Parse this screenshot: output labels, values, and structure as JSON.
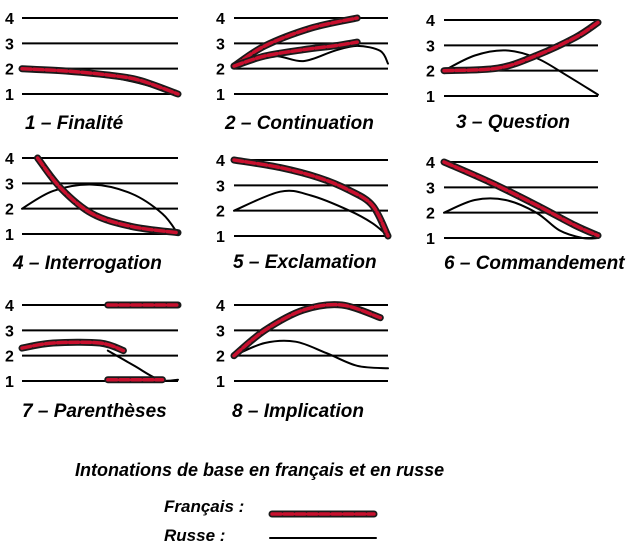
{
  "levels": [
    "1",
    "2",
    "3",
    "4"
  ],
  "panels": [
    {
      "title": "1 – Finalité",
      "french": [
        [
          0,
          2
        ],
        [
          0.3,
          1.9
        ],
        [
          0.55,
          1.75
        ],
        [
          0.75,
          1.55
        ],
        [
          1,
          1
        ]
      ],
      "russian": [
        [
          0.05,
          2
        ],
        [
          0.35,
          1.9
        ],
        [
          0.7,
          1.5
        ],
        [
          1,
          1
        ]
      ]
    },
    {
      "title": "2 – Continuation",
      "french": [
        [
          0,
          2.1
        ],
        [
          0.2,
          2.9
        ],
        [
          0.5,
          3.6
        ],
        [
          0.8,
          4
        ]
      ],
      "french2": [
        [
          0,
          2.1
        ],
        [
          0.2,
          2.5
        ],
        [
          0.45,
          2.75
        ],
        [
          0.65,
          2.9
        ],
        [
          0.8,
          3.05
        ]
      ],
      "russian": [
        [
          0,
          2.1
        ],
        [
          0.25,
          2.5
        ],
        [
          0.45,
          2.3
        ],
        [
          0.65,
          2.7
        ],
        [
          0.8,
          2.9
        ],
        [
          0.95,
          2.7
        ],
        [
          1,
          2.2
        ]
      ]
    },
    {
      "title": "3 – Question",
      "french": [
        [
          0,
          2
        ],
        [
          0.35,
          2.1
        ],
        [
          0.6,
          2.6
        ],
        [
          0.85,
          3.3
        ],
        [
          1,
          3.9
        ]
      ],
      "russian": [
        [
          0,
          2
        ],
        [
          0.2,
          2.6
        ],
        [
          0.4,
          2.8
        ],
        [
          0.6,
          2.5
        ],
        [
          0.8,
          1.8
        ],
        [
          1,
          1.05
        ]
      ]
    },
    {
      "title": "4 – Interrogation",
      "french": [
        [
          0.1,
          4
        ],
        [
          0.25,
          2.8
        ],
        [
          0.45,
          1.8
        ],
        [
          0.7,
          1.3
        ],
        [
          1,
          1.05
        ]
      ],
      "russian": [
        [
          0,
          2
        ],
        [
          0.2,
          2.7
        ],
        [
          0.45,
          2.95
        ],
        [
          0.7,
          2.6
        ],
        [
          0.9,
          1.8
        ],
        [
          1,
          1
        ]
      ]
    },
    {
      "title": "5 – Exclamation",
      "french": [
        [
          0,
          4
        ],
        [
          0.3,
          3.7
        ],
        [
          0.55,
          3.3
        ],
        [
          0.75,
          2.8
        ],
        [
          0.9,
          2.2
        ],
        [
          1,
          1
        ]
      ],
      "russian": [
        [
          0,
          2
        ],
        [
          0.3,
          2.75
        ],
        [
          0.5,
          2.6
        ],
        [
          0.75,
          2
        ],
        [
          0.9,
          1.5
        ],
        [
          1,
          1
        ]
      ]
    },
    {
      "title": "6 – Commandement",
      "french": [
        [
          0,
          4
        ],
        [
          0.3,
          3.2
        ],
        [
          0.6,
          2.3
        ],
        [
          0.85,
          1.5
        ],
        [
          1,
          1.1
        ]
      ],
      "russian": [
        [
          0,
          2
        ],
        [
          0.2,
          2.5
        ],
        [
          0.4,
          2.5
        ],
        [
          0.6,
          2
        ],
        [
          0.75,
          1.3
        ],
        [
          0.9,
          1
        ],
        [
          1,
          1
        ]
      ]
    },
    {
      "title": "7 – Parenthèses",
      "french": [
        [
          0,
          2.3
        ],
        [
          0.2,
          2.5
        ],
        [
          0.5,
          2.5
        ],
        [
          0.65,
          2.2
        ]
      ],
      "french2": [
        [
          0.55,
          4
        ],
        [
          1,
          4
        ]
      ],
      "french3": [
        [
          0.55,
          1.05
        ],
        [
          0.9,
          1.05
        ]
      ],
      "russian": [
        [
          0.55,
          2.2
        ],
        [
          0.72,
          1.6
        ],
        [
          0.88,
          1.05
        ],
        [
          1,
          1.05
        ]
      ]
    },
    {
      "title": "8 – Implication",
      "french": [
        [
          0,
          2
        ],
        [
          0.2,
          3
        ],
        [
          0.45,
          3.8
        ],
        [
          0.7,
          4
        ],
        [
          0.95,
          3.5
        ]
      ],
      "russian": [
        [
          0,
          2
        ],
        [
          0.2,
          2.5
        ],
        [
          0.4,
          2.55
        ],
        [
          0.6,
          2.1
        ],
        [
          0.8,
          1.6
        ],
        [
          1,
          1.5
        ]
      ]
    }
  ],
  "caption": "Intonations de base en français et en russe",
  "legend": {
    "french": "Français :",
    "russian": "Russe :",
    "french_color": "#c8102e",
    "russian_color": "#000000"
  }
}
